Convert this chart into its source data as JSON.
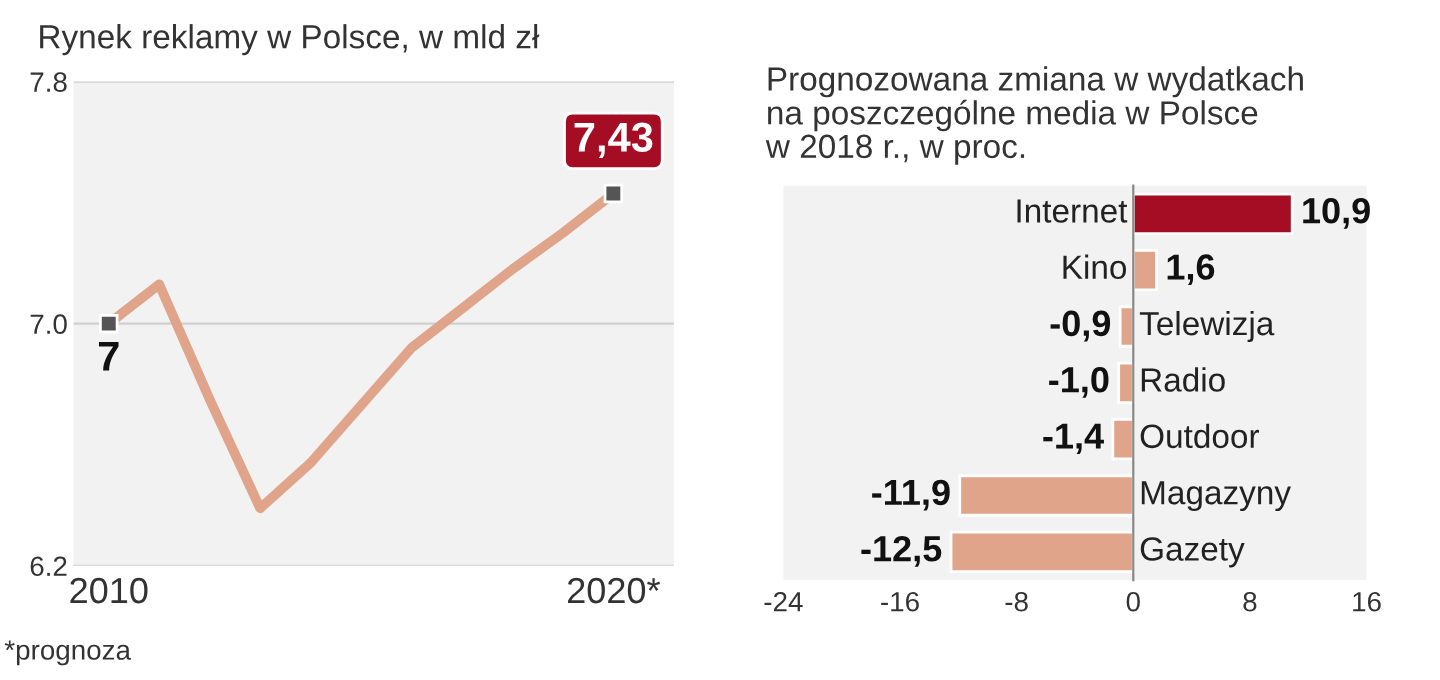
{
  "chart_data": [
    {
      "type": "line",
      "title": "Rynek reklamy w Polsce, w mld zł",
      "x": [
        2010,
        2011,
        2012,
        2013,
        2014,
        2015,
        2016,
        2017,
        2018,
        2019,
        2020
      ],
      "series": [
        {
          "color": "#e0a48a",
          "values": [
            7.0,
            7.13,
            6.75,
            6.39,
            6.54,
            6.73,
            6.92,
            7.05,
            7.18,
            7.3,
            7.43
          ],
          "value_labels": [
            "7",
            null,
            null,
            null,
            null,
            null,
            null,
            null,
            null,
            null,
            "7,43"
          ]
        }
      ],
      "xlim": [
        2009.3,
        2021.2
      ],
      "xticks": [
        2010,
        {
          "value": 2020,
          "label": "2020*"
        }
      ],
      "ylim": [
        6.2,
        7.8
      ],
      "yticks": [
        6.2,
        {
          "value": 7.0,
          "label": "7.0"
        },
        7.8
      ],
      "grid": "y",
      "line_style": "solid",
      "annotations": [
        "*prognoza"
      ]
    },
    {
      "type": "bar",
      "orientation": "horizontal",
      "title": "Prognozowana zmiana w wydatkach\nna poszczególne media w Polsce\nw 2018 r., w proc.",
      "categories": [
        "Internet",
        "Kino",
        "Telewizja",
        "Radio",
        "Outdoor",
        "Magazyny",
        "Gazety"
      ],
      "values": [
        10.9,
        1.6,
        -0.9,
        -1.0,
        -1.4,
        -11.9,
        -12.5
      ],
      "colors": [
        "#a50d25",
        "#e0a48a",
        "#e0a48a",
        "#e0a48a",
        "#e0a48a",
        "#e0a48a",
        "#e0a48a"
      ],
      "value_labels": [
        "10,9",
        "1,6",
        "-0,9",
        "-1,0",
        "-1,4",
        "-11,9",
        "-12,5"
      ],
      "xlim": [
        -24,
        16
      ],
      "xticks": [
        -24,
        -16,
        -8,
        0,
        8,
        16
      ],
      "grid": false
    }
  ]
}
